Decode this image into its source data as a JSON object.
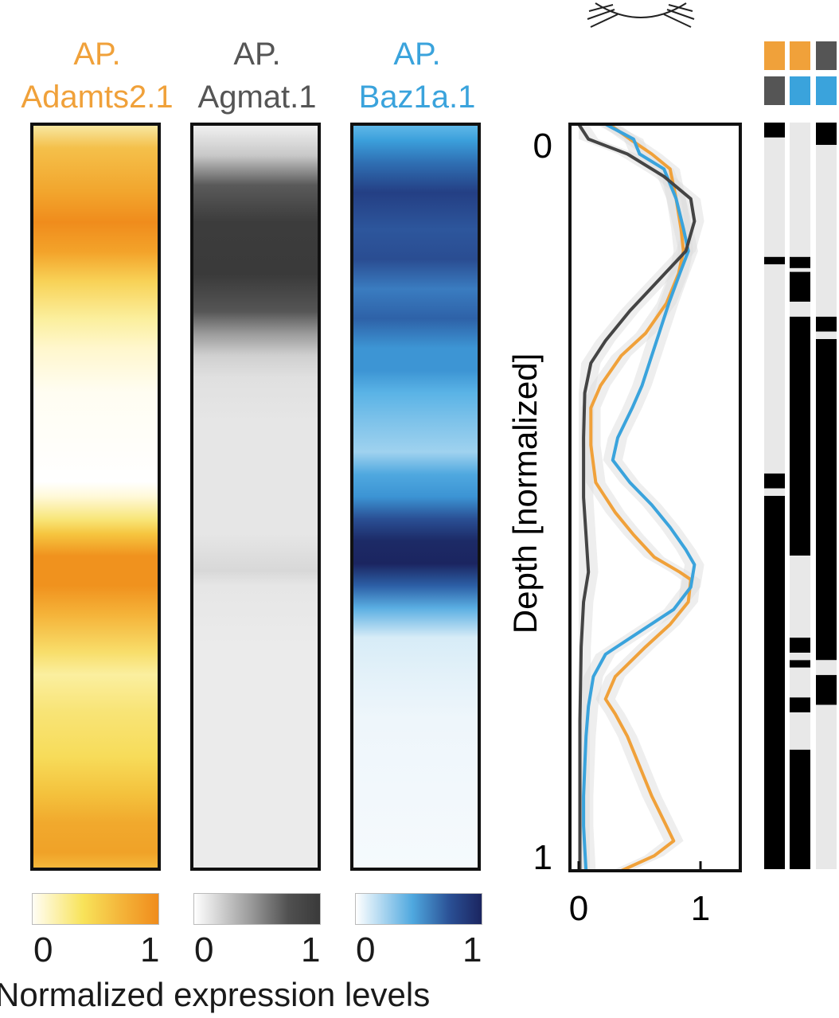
{
  "chart_data": [
    {
      "type": "heatmap",
      "panels": [
        {
          "name_line1": "AP.",
          "name_line2": "Adamts2.1",
          "color": "#f0a13a",
          "stops": [
            [
              0,
              "#f8e7a0"
            ],
            [
              0.03,
              "#f4c04a"
            ],
            [
              0.09,
              "#f2a52d"
            ],
            [
              0.13,
              "#f08c1c"
            ],
            [
              0.17,
              "#f3a32a"
            ],
            [
              0.21,
              "#f8d257"
            ],
            [
              0.26,
              "#fbef9d"
            ],
            [
              0.3,
              "#fff7cd"
            ],
            [
              0.36,
              "#fffdf2"
            ],
            [
              0.48,
              "#ffffff"
            ],
            [
              0.5,
              "#fff9d8"
            ],
            [
              0.53,
              "#f8e67a"
            ],
            [
              0.55,
              "#f6c640"
            ],
            [
              0.58,
              "#f0921e"
            ],
            [
              0.62,
              "#f0921e"
            ],
            [
              0.66,
              "#f5b43a"
            ],
            [
              0.71,
              "#f8de6b"
            ],
            [
              0.74,
              "#fbef9f"
            ],
            [
              0.79,
              "#f8e476"
            ],
            [
              0.85,
              "#f7dc5a"
            ],
            [
              0.9,
              "#f4c23d"
            ],
            [
              0.94,
              "#f1a92d"
            ],
            [
              0.98,
              "#f0a228"
            ],
            [
              1,
              "#f4b83a"
            ]
          ]
        },
        {
          "name_line1": "AP.",
          "name_line2": "Agmat.1",
          "color": "#555555",
          "stops": [
            [
              0,
              "#f0f0f0"
            ],
            [
              0.04,
              "#c8c8c8"
            ],
            [
              0.08,
              "#5a5a5a"
            ],
            [
              0.13,
              "#3c3c3c"
            ],
            [
              0.2,
              "#3a3a3a"
            ],
            [
              0.25,
              "#555555"
            ],
            [
              0.28,
              "#9a9a9a"
            ],
            [
              0.31,
              "#d0d0d0"
            ],
            [
              0.34,
              "#e0e0e0"
            ],
            [
              0.4,
              "#e6e6e6"
            ],
            [
              0.55,
              "#e6e6e6"
            ],
            [
              0.6,
              "#d8d8d8"
            ],
            [
              0.62,
              "#e6e6e6"
            ],
            [
              0.7,
              "#ebebeb"
            ],
            [
              1,
              "#ebebeb"
            ]
          ]
        },
        {
          "name_line1": "AP.",
          "name_line2": "Baz1a.1",
          "color": "#3aa3dc",
          "stops": [
            [
              0,
              "#5fb8e8"
            ],
            [
              0.02,
              "#3b9fdb"
            ],
            [
              0.05,
              "#2f6fb3"
            ],
            [
              0.09,
              "#243f84"
            ],
            [
              0.14,
              "#2d569c"
            ],
            [
              0.18,
              "#2a4d92"
            ],
            [
              0.22,
              "#3a7cc0"
            ],
            [
              0.26,
              "#2e62a8"
            ],
            [
              0.3,
              "#3d95d4"
            ],
            [
              0.33,
              "#3d95d4"
            ],
            [
              0.36,
              "#5ab3e6"
            ],
            [
              0.4,
              "#7fc3ea"
            ],
            [
              0.44,
              "#9fd2ef"
            ],
            [
              0.47,
              "#4fa8df"
            ],
            [
              0.5,
              "#3c94d4"
            ],
            [
              0.53,
              "#2a4f94"
            ],
            [
              0.56,
              "#1c2a66"
            ],
            [
              0.59,
              "#1b2560"
            ],
            [
              0.62,
              "#2c5fa6"
            ],
            [
              0.65,
              "#5aaee2"
            ],
            [
              0.69,
              "#d7ecf7"
            ],
            [
              0.74,
              "#e3f1f9"
            ],
            [
              0.8,
              "#eef6fb"
            ],
            [
              0.9,
              "#f2f8fc"
            ],
            [
              1,
              "#f5fafd"
            ]
          ]
        }
      ],
      "colorbar_ticks": [
        "0",
        "1"
      ],
      "colorbar_label": "Normalized expression levels"
    },
    {
      "type": "line",
      "ylabel": "Depth [normalized]",
      "xlim": [
        0,
        1.3
      ],
      "ylim": [
        0,
        1
      ],
      "x_ticks": [
        "0",
        "1"
      ],
      "y_ticks": [
        "0",
        "1"
      ],
      "series": [
        {
          "color": "#f0a13a",
          "points": [
            [
              0.25,
              0.0
            ],
            [
              0.42,
              0.02
            ],
            [
              0.6,
              0.04
            ],
            [
              0.75,
              0.06
            ],
            [
              0.8,
              0.1
            ],
            [
              0.84,
              0.14
            ],
            [
              0.86,
              0.17
            ],
            [
              0.82,
              0.2
            ],
            [
              0.72,
              0.24
            ],
            [
              0.55,
              0.28
            ],
            [
              0.35,
              0.31
            ],
            [
              0.18,
              0.35
            ],
            [
              0.1,
              0.38
            ],
            [
              0.1,
              0.43
            ],
            [
              0.14,
              0.48
            ],
            [
              0.3,
              0.52
            ],
            [
              0.45,
              0.55
            ],
            [
              0.62,
              0.58
            ],
            [
              0.83,
              0.6
            ],
            [
              0.92,
              0.61
            ],
            [
              0.9,
              0.64
            ],
            [
              0.75,
              0.67
            ],
            [
              0.55,
              0.7
            ],
            [
              0.3,
              0.74
            ],
            [
              0.22,
              0.77
            ],
            [
              0.3,
              0.79
            ],
            [
              0.4,
              0.82
            ],
            [
              0.5,
              0.86
            ],
            [
              0.6,
              0.9
            ],
            [
              0.72,
              0.94
            ],
            [
              0.78,
              0.96
            ],
            [
              0.62,
              0.98
            ],
            [
              0.35,
              1.0
            ]
          ]
        },
        {
          "color": "#3aa3dc",
          "points": [
            [
              0.22,
              0.0
            ],
            [
              0.45,
              0.02
            ],
            [
              0.5,
              0.04
            ],
            [
              0.7,
              0.06
            ],
            [
              0.8,
              0.1
            ],
            [
              0.86,
              0.14
            ],
            [
              0.9,
              0.17
            ],
            [
              0.83,
              0.2
            ],
            [
              0.74,
              0.24
            ],
            [
              0.66,
              0.28
            ],
            [
              0.6,
              0.31
            ],
            [
              0.52,
              0.35
            ],
            [
              0.44,
              0.38
            ],
            [
              0.32,
              0.42
            ],
            [
              0.28,
              0.45
            ],
            [
              0.42,
              0.48
            ],
            [
              0.6,
              0.51
            ],
            [
              0.75,
              0.54
            ],
            [
              0.88,
              0.57
            ],
            [
              0.95,
              0.59
            ],
            [
              0.92,
              0.62
            ],
            [
              0.78,
              0.65
            ],
            [
              0.5,
              0.68
            ],
            [
              0.22,
              0.71
            ],
            [
              0.12,
              0.74
            ],
            [
              0.08,
              0.78
            ],
            [
              0.06,
              0.82
            ],
            [
              0.05,
              0.86
            ],
            [
              0.04,
              0.9
            ],
            [
              0.04,
              0.94
            ],
            [
              0.05,
              0.97
            ],
            [
              0.06,
              1.0
            ]
          ]
        },
        {
          "color": "#444444",
          "points": [
            [
              0.0,
              0.0
            ],
            [
              0.08,
              0.02
            ],
            [
              0.4,
              0.04
            ],
            [
              0.7,
              0.07
            ],
            [
              0.92,
              0.1
            ],
            [
              0.95,
              0.13
            ],
            [
              0.88,
              0.17
            ],
            [
              0.65,
              0.21
            ],
            [
              0.42,
              0.25
            ],
            [
              0.22,
              0.29
            ],
            [
              0.1,
              0.32
            ],
            [
              0.05,
              0.36
            ],
            [
              0.04,
              0.42
            ],
            [
              0.04,
              0.5
            ],
            [
              0.06,
              0.55
            ],
            [
              0.08,
              0.6
            ],
            [
              0.04,
              0.64
            ],
            [
              0.02,
              0.7
            ],
            [
              0.01,
              0.8
            ],
            [
              0.01,
              0.9
            ],
            [
              0.01,
              1.0
            ]
          ]
        }
      ]
    },
    {
      "type": "heatmap",
      "columns": [
        {
          "header": [
            "#f0a13a",
            "#555555"
          ],
          "segments": [
            [
              0.0,
              0.02,
              "#000000"
            ],
            [
              0.02,
              0.18,
              "#e8e8e8"
            ],
            [
              0.18,
              0.19,
              "#000000"
            ],
            [
              0.19,
              0.47,
              "#e8e8e8"
            ],
            [
              0.47,
              0.49,
              "#000000"
            ],
            [
              0.49,
              0.5,
              "#e8e8e8"
            ],
            [
              0.5,
              1.0,
              "#000000"
            ]
          ]
        },
        {
          "header": [
            "#f0a13a",
            "#3aa3dc"
          ],
          "segments": [
            [
              0.0,
              0.18,
              "#e8e8e8"
            ],
            [
              0.18,
              0.195,
              "#000000"
            ],
            [
              0.195,
              0.2,
              "#e8e8e8"
            ],
            [
              0.2,
              0.24,
              "#000000"
            ],
            [
              0.24,
              0.26,
              "#e8e8e8"
            ],
            [
              0.26,
              0.58,
              "#000000"
            ],
            [
              0.58,
              0.69,
              "#e8e8e8"
            ],
            [
              0.69,
              0.71,
              "#000000"
            ],
            [
              0.71,
              0.72,
              "#e8e8e8"
            ],
            [
              0.72,
              0.73,
              "#000000"
            ],
            [
              0.73,
              0.77,
              "#e8e8e8"
            ],
            [
              0.77,
              0.79,
              "#000000"
            ],
            [
              0.79,
              0.84,
              "#e8e8e8"
            ],
            [
              0.84,
              1.0,
              "#000000"
            ]
          ]
        },
        {
          "header": [
            "#555555",
            "#3aa3dc"
          ],
          "segments": [
            [
              0.0,
              0.03,
              "#000000"
            ],
            [
              0.03,
              0.26,
              "#e8e8e8"
            ],
            [
              0.26,
              0.28,
              "#000000"
            ],
            [
              0.28,
              0.29,
              "#e8e8e8"
            ],
            [
              0.29,
              0.72,
              "#000000"
            ],
            [
              0.72,
              0.74,
              "#e8e8e8"
            ],
            [
              0.74,
              0.78,
              "#000000"
            ],
            [
              0.78,
              1.0,
              "#e8e8e8"
            ]
          ]
        }
      ]
    }
  ]
}
